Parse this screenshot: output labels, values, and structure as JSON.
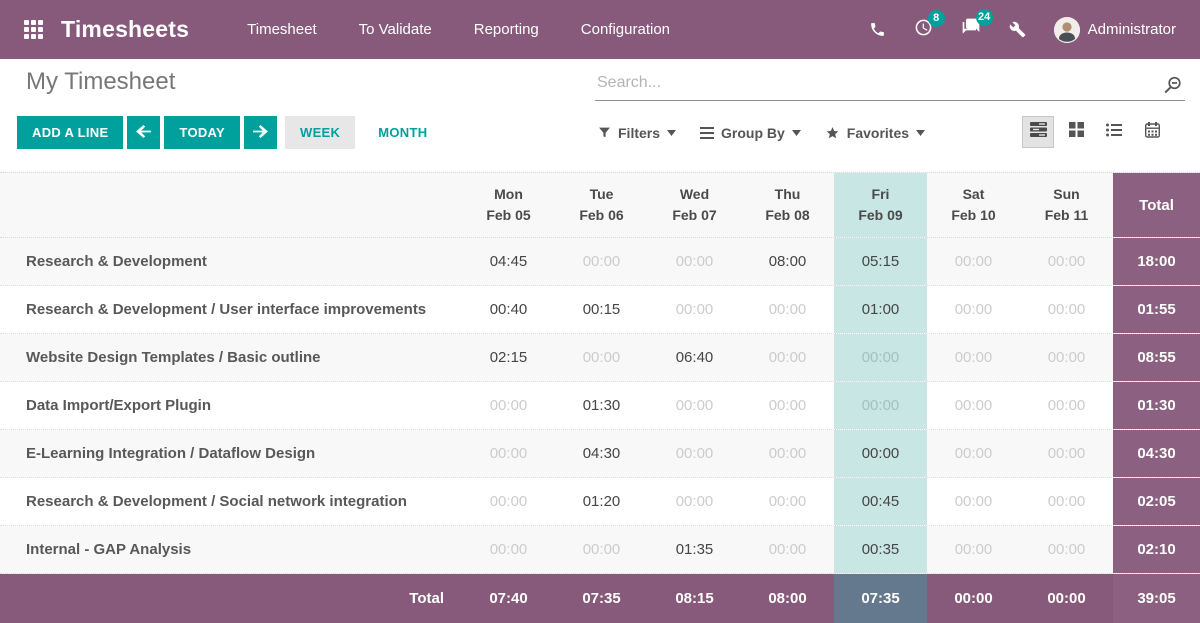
{
  "colors": {
    "brand": "#875A7B",
    "teal": "#00A09D",
    "today_highlight": "#C8E7E4",
    "today_footer": "#64798E",
    "total_column": "#8C6080",
    "today_muted_text": "#A2C2BF"
  },
  "nav": {
    "brand": "Timesheets",
    "menu_items": [
      "Timesheet",
      "To Validate",
      "Reporting",
      "Configuration"
    ],
    "activity_badge": "8",
    "message_badge": "24",
    "user": "Administrator"
  },
  "control": {
    "title": "My Timesheet",
    "search_placeholder": "Search...",
    "buttons": {
      "add_line": "ADD A LINE",
      "today": "TODAY",
      "week": "WEEK",
      "month": "MONTH"
    },
    "filter_menus": [
      {
        "label": "Filters",
        "icon": "funnel-icon"
      },
      {
        "label": "Group By",
        "icon": "group-by-icon"
      },
      {
        "label": "Favorites",
        "icon": "star-icon"
      }
    ],
    "view_switcher": [
      {
        "label": "grid",
        "icon": "grid-view-icon",
        "active": true
      },
      {
        "label": "kanban",
        "icon": "kanban-view-icon",
        "active": false
      },
      {
        "label": "list",
        "icon": "list-view-icon",
        "active": false
      },
      {
        "label": "calendar",
        "icon": "calendar-view-icon",
        "active": false
      }
    ]
  },
  "grid": {
    "total_header": "Total",
    "columns": [
      {
        "day": "Mon",
        "date": "Feb 05",
        "today": false
      },
      {
        "day": "Tue",
        "date": "Feb 06",
        "today": false
      },
      {
        "day": "Wed",
        "date": "Feb 07",
        "today": false
      },
      {
        "day": "Thu",
        "date": "Feb 08",
        "today": false
      },
      {
        "day": "Fri",
        "date": "Feb 09",
        "today": true
      },
      {
        "day": "Sat",
        "date": "Feb 10",
        "today": false
      },
      {
        "day": "Sun",
        "date": "Feb 11",
        "today": false
      }
    ],
    "rows": [
      {
        "name": "Research & Development",
        "values": [
          {
            "t": "04:45",
            "entered": true
          },
          {
            "t": "00:00",
            "entered": false
          },
          {
            "t": "00:00",
            "entered": false
          },
          {
            "t": "08:00",
            "entered": true
          },
          {
            "t": "05:15",
            "entered": true
          },
          {
            "t": "00:00",
            "entered": false
          },
          {
            "t": "00:00",
            "entered": false
          }
        ],
        "total": "18:00"
      },
      {
        "name": "Research & Development /  User interface improvements",
        "values": [
          {
            "t": "00:40",
            "entered": true
          },
          {
            "t": "00:15",
            "entered": true
          },
          {
            "t": "00:00",
            "entered": false
          },
          {
            "t": "00:00",
            "entered": false
          },
          {
            "t": "01:00",
            "entered": true
          },
          {
            "t": "00:00",
            "entered": false
          },
          {
            "t": "00:00",
            "entered": false
          }
        ],
        "total": "01:55"
      },
      {
        "name": "Website Design Templates /  Basic outline",
        "values": [
          {
            "t": "02:15",
            "entered": true
          },
          {
            "t": "00:00",
            "entered": false
          },
          {
            "t": "06:40",
            "entered": true
          },
          {
            "t": "00:00",
            "entered": false
          },
          {
            "t": "00:00",
            "entered": false
          },
          {
            "t": "00:00",
            "entered": false
          },
          {
            "t": "00:00",
            "entered": false
          }
        ],
        "total": "08:55"
      },
      {
        "name": "Data Import/Export Plugin",
        "values": [
          {
            "t": "00:00",
            "entered": false
          },
          {
            "t": "01:30",
            "entered": true
          },
          {
            "t": "00:00",
            "entered": false
          },
          {
            "t": "00:00",
            "entered": false
          },
          {
            "t": "00:00",
            "entered": false
          },
          {
            "t": "00:00",
            "entered": false
          },
          {
            "t": "00:00",
            "entered": false
          }
        ],
        "total": "01:30"
      },
      {
        "name": "E-Learning Integration /  Dataflow Design",
        "values": [
          {
            "t": "00:00",
            "entered": false
          },
          {
            "t": "04:30",
            "entered": true
          },
          {
            "t": "00:00",
            "entered": false
          },
          {
            "t": "00:00",
            "entered": false
          },
          {
            "t": "00:00",
            "entered": true
          },
          {
            "t": "00:00",
            "entered": false
          },
          {
            "t": "00:00",
            "entered": false
          }
        ],
        "total": "04:30"
      },
      {
        "name": "Research & Development /  Social network integration",
        "values": [
          {
            "t": "00:00",
            "entered": false
          },
          {
            "t": "01:20",
            "entered": true
          },
          {
            "t": "00:00",
            "entered": false
          },
          {
            "t": "00:00",
            "entered": false
          },
          {
            "t": "00:45",
            "entered": true
          },
          {
            "t": "00:00",
            "entered": false
          },
          {
            "t": "00:00",
            "entered": false
          }
        ],
        "total": "02:05"
      },
      {
        "name": "Internal - GAP Analysis",
        "values": [
          {
            "t": "00:00",
            "entered": false
          },
          {
            "t": "00:00",
            "entered": false
          },
          {
            "t": "01:35",
            "entered": true
          },
          {
            "t": "00:00",
            "entered": false
          },
          {
            "t": "00:35",
            "entered": true
          },
          {
            "t": "00:00",
            "entered": false
          },
          {
            "t": "00:00",
            "entered": false
          }
        ],
        "total": "02:10"
      }
    ],
    "footer": {
      "label": "Total",
      "values": [
        "07:40",
        "07:35",
        "08:15",
        "08:00",
        "07:35",
        "00:00",
        "00:00"
      ],
      "grand_total": "39:05"
    }
  }
}
